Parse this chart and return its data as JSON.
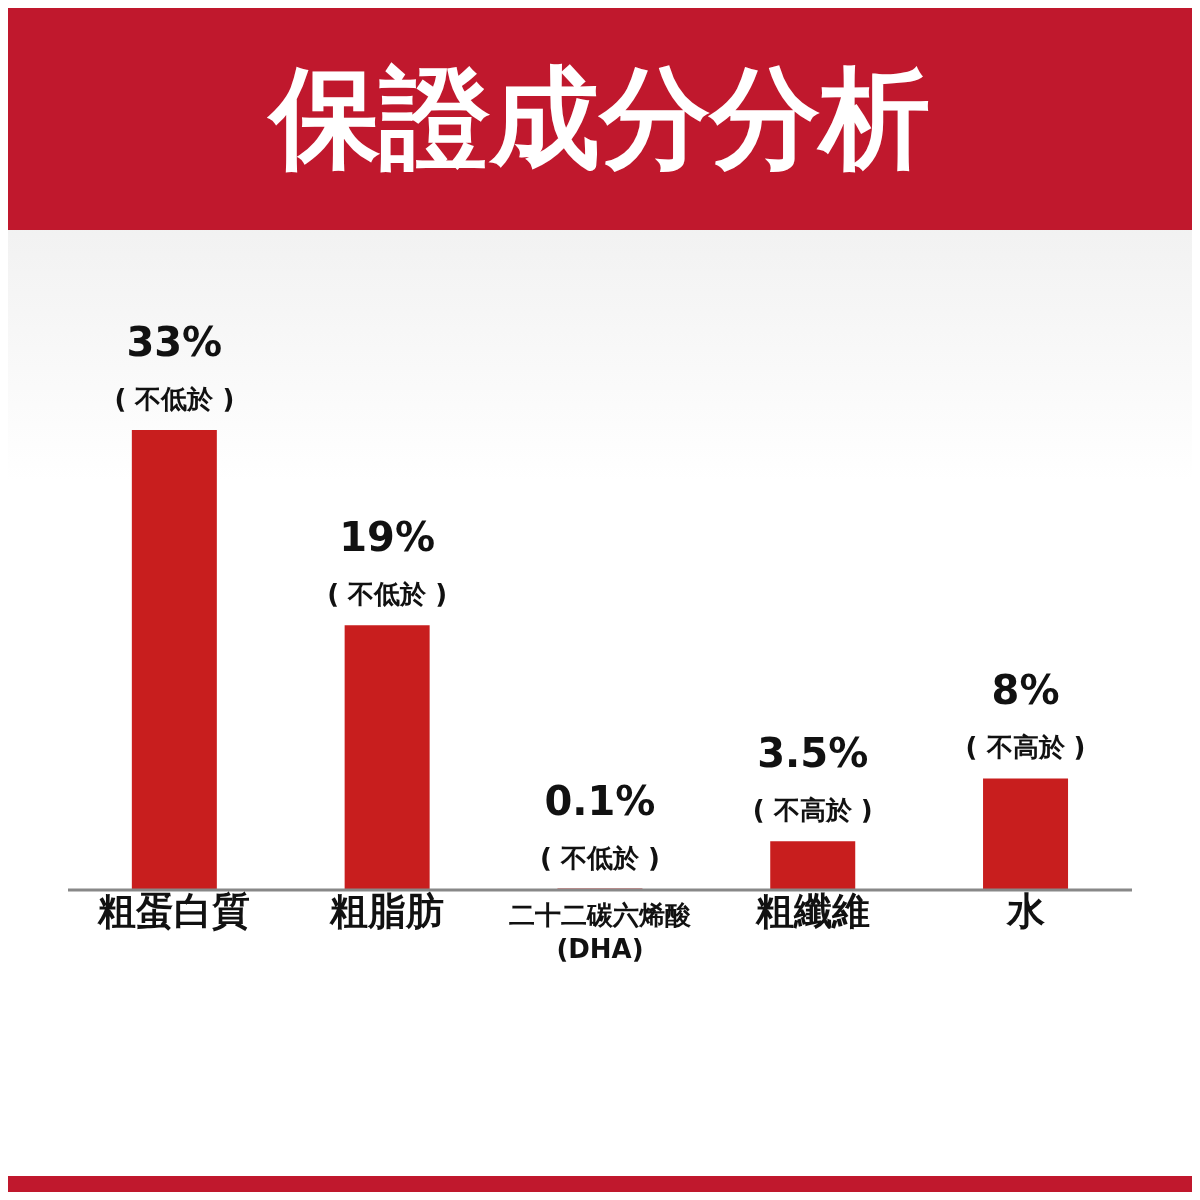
{
  "chart_data": {
    "type": "bar",
    "title": "保證成分分析",
    "categories": [
      "粗蛋白質",
      "粗脂肪",
      "二十二碳六烯酸\n(DHA)",
      "粗纖維",
      "水"
    ],
    "values": [
      33,
      19,
      0.1,
      3.5,
      8
    ],
    "value_labels": [
      "33%\n( 不低於 )",
      "19%\n( 不低於 )",
      "0.1%\n( 不低於 )",
      "3.5%\n( 不高於 )",
      "8%\n( 不高於 )"
    ],
    "color": "#c81e1e"
  }
}
